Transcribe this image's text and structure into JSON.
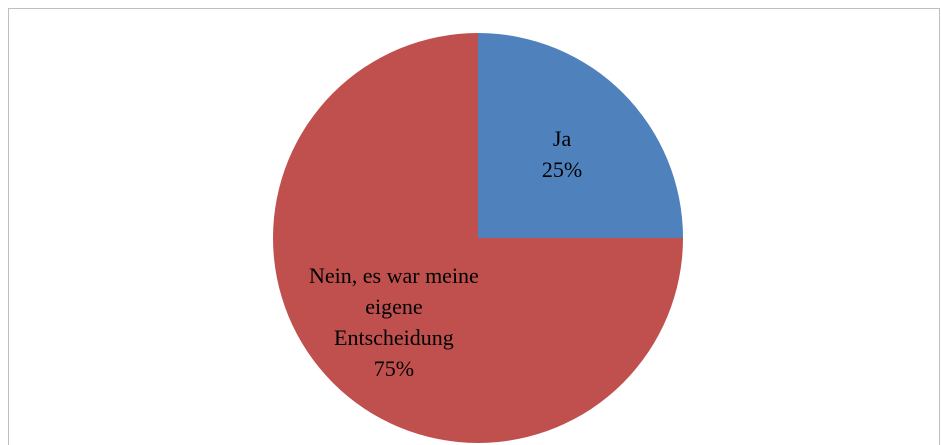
{
  "chart_data": {
    "type": "pie",
    "categories": [
      "Ja",
      "Nein, es war meine eigene Entscheidung"
    ],
    "values": [
      25,
      75
    ],
    "value_labels": [
      "25%",
      "75%"
    ],
    "colors": [
      "#4f81bd",
      "#c0504d"
    ]
  }
}
